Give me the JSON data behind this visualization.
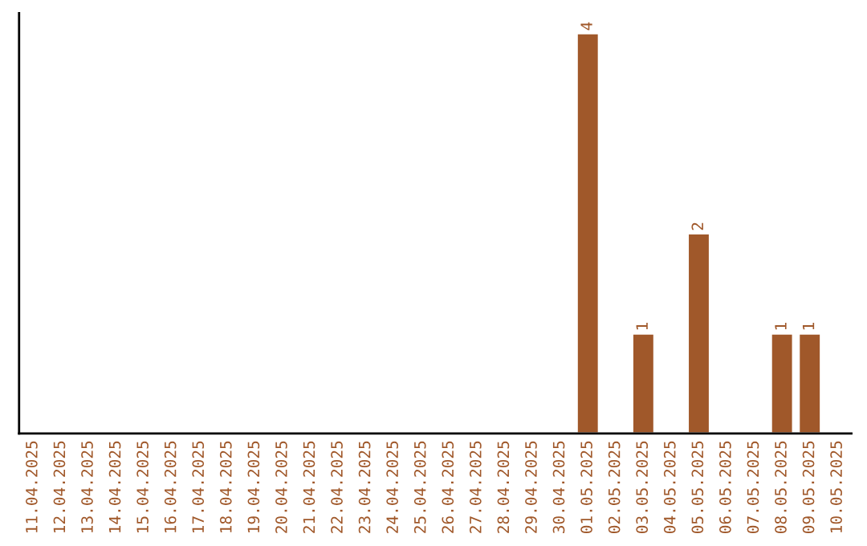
{
  "chart_data": {
    "type": "bar",
    "categories": [
      "11.04.2025",
      "12.04.2025",
      "13.04.2025",
      "14.04.2025",
      "15.04.2025",
      "16.04.2025",
      "17.04.2025",
      "18.04.2025",
      "19.04.2025",
      "20.04.2025",
      "21.04.2025",
      "22.04.2025",
      "23.04.2025",
      "24.04.2025",
      "25.04.2025",
      "26.04.2025",
      "27.04.2025",
      "28.04.2025",
      "29.04.2025",
      "30.04.2025",
      "01.05.2025",
      "02.05.2025",
      "03.05.2025",
      "04.05.2025",
      "05.05.2025",
      "06.05.2025",
      "07.05.2025",
      "08.05.2025",
      "09.05.2025",
      "10.05.2025"
    ],
    "values": [
      null,
      null,
      null,
      null,
      null,
      null,
      null,
      null,
      null,
      null,
      null,
      null,
      null,
      null,
      null,
      null,
      null,
      null,
      null,
      null,
      4,
      null,
      1,
      null,
      2,
      null,
      null,
      1,
      1,
      null
    ],
    "data_labels": true,
    "color": "#a0582a",
    "tick_labels": "x",
    "grid": false
  }
}
